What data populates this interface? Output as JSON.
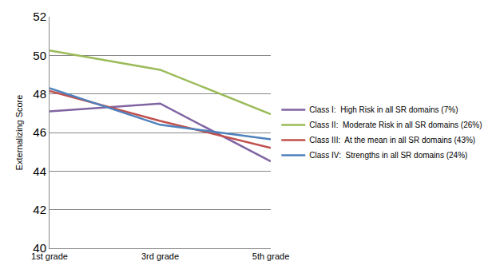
{
  "chart_data": {
    "type": "line",
    "y_label": "Externalizing Score",
    "categories": [
      "1st grade",
      "3rd grade",
      "5th grade"
    ],
    "series": [
      {
        "name": "Class I:  High Risk in all SR domains (7%)",
        "color": "#8064a2",
        "values": [
          47.1,
          47.5,
          44.5
        ]
      },
      {
        "name": "Class II:  Moderate Risk in all SR domains (26%)",
        "color": "#9bbb59",
        "values": [
          50.25,
          49.25,
          46.95
        ]
      },
      {
        "name": "Class III:  At the mean in all SR domains (43%)",
        "color": "#c0504d",
        "values": [
          48.15,
          46.6,
          45.2
        ]
      },
      {
        "name": "Class IV:  Strengths in all SR domains (24%)",
        "color": "#4f81bd",
        "values": [
          48.3,
          46.4,
          45.65
        ]
      }
    ],
    "ylim": [
      40,
      52
    ],
    "yticks": [
      40,
      42,
      44,
      46,
      48,
      50,
      52
    ],
    "grid": true,
    "legend": "right"
  }
}
